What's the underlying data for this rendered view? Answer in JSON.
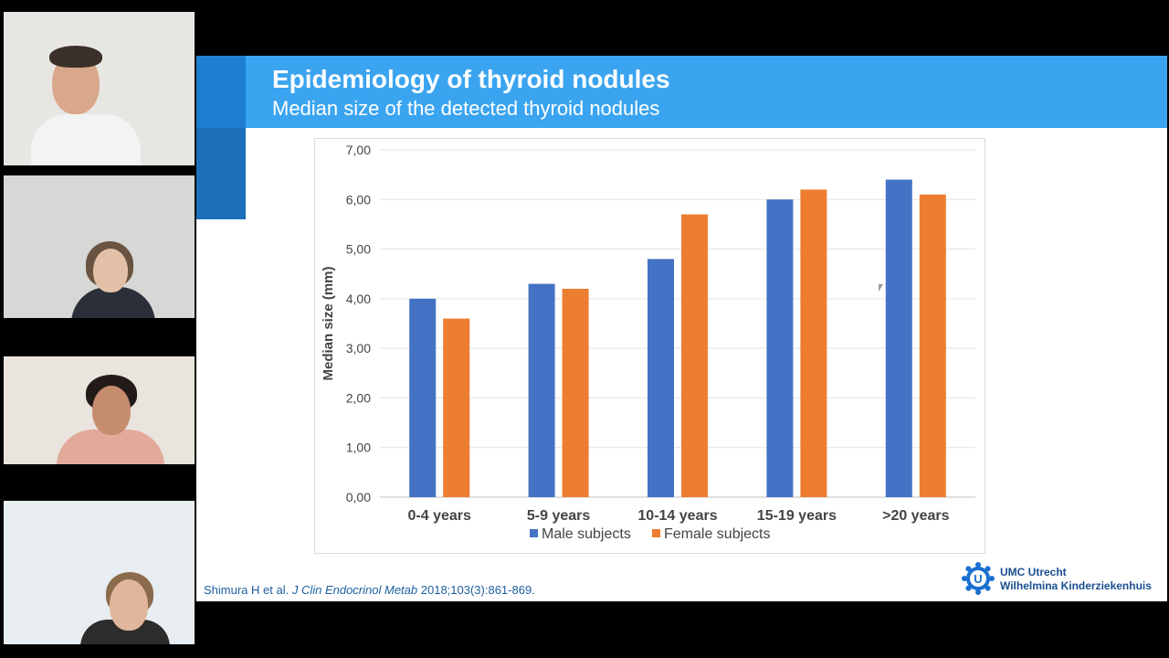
{
  "slide": {
    "title": "Epidemiology of thyroid nodules",
    "subtitle": "Median size of the detected thyroid nodules",
    "citation_authors": "Shimura H et al.",
    "citation_journal": "J Clin Endocrinol Metab",
    "citation_ref": "2018;103(3):861-869.",
    "logo_line1": "UMC Utrecht",
    "logo_line2": "Wilhelmina Kinderziekenhuis"
  },
  "colors": {
    "banner": "#3aa4f0",
    "male": "#4472c4",
    "female": "#ed7d31"
  },
  "participants": [
    {
      "name": "participant-1",
      "wall": "#e8e6e3",
      "skin": "#d9a88a",
      "hair": "#3b3029",
      "shirt": "#f3f3f3"
    },
    {
      "name": "participant-2",
      "wall": "#d7d7d5",
      "skin": "#e3c1a8",
      "hair": "#6a5340",
      "shirt": "#2b2f3a"
    },
    {
      "name": "participant-3",
      "wall": "#e9e4de",
      "skin": "#c68c6e",
      "hair": "#231b18",
      "shirt": "#e3a99a"
    },
    {
      "name": "participant-4",
      "wall": "#e7edf1",
      "skin": "#e0b79c",
      "hair": "#8b6b4c",
      "shirt": "#2c2c2c"
    }
  ],
  "chart_data": {
    "type": "bar",
    "title": "",
    "xlabel": "",
    "ylabel": "Median size (mm)",
    "categories": [
      "0-4 years",
      "5-9 years",
      "10-14 years",
      "15-19 years",
      ">20 years"
    ],
    "series": [
      {
        "name": "Male subjects",
        "values": [
          4.0,
          4.3,
          4.8,
          6.0,
          6.4
        ]
      },
      {
        "name": "Female subjects",
        "values": [
          3.6,
          4.2,
          5.7,
          6.2,
          6.1
        ]
      }
    ],
    "ylim": [
      0,
      7
    ],
    "yticks": [
      "0,00",
      "1,00",
      "2,00",
      "3,00",
      "4,00",
      "5,00",
      "6,00",
      "7,00"
    ],
    "grid": true,
    "legend": "bottom"
  }
}
